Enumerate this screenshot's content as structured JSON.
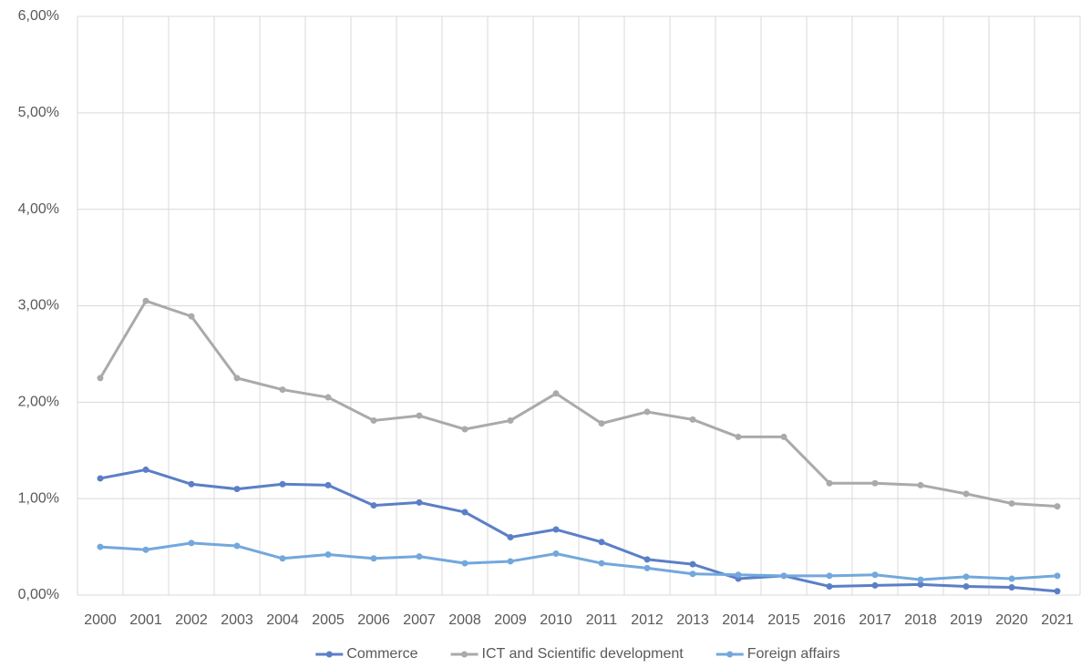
{
  "chart_data": {
    "type": "line",
    "categories": [
      "2000",
      "2001",
      "2002",
      "2003",
      "2004",
      "2005",
      "2006",
      "2007",
      "2008",
      "2009",
      "2010",
      "2011",
      "2012",
      "2013",
      "2014",
      "2015",
      "2016",
      "2017",
      "2018",
      "2019",
      "2020",
      "2021"
    ],
    "series": [
      {
        "name": "Commerce",
        "color": "#5b7fc7",
        "values": [
          1.21,
          1.3,
          1.15,
          1.1,
          1.15,
          1.14,
          0.93,
          0.96,
          0.86,
          0.6,
          0.68,
          0.55,
          0.37,
          0.32,
          0.17,
          0.2,
          0.09,
          0.1,
          0.11,
          0.09,
          0.08,
          0.04
        ]
      },
      {
        "name": "ICT and Scientific development",
        "color": "#aaaaaa",
        "values": [
          2.25,
          3.05,
          2.89,
          2.25,
          2.13,
          2.05,
          1.81,
          1.86,
          1.72,
          1.81,
          2.09,
          1.78,
          1.9,
          1.82,
          1.64,
          1.64,
          1.16,
          1.16,
          1.14,
          1.05,
          0.95,
          0.92
        ]
      },
      {
        "name": "Foreign affairs",
        "color": "#72a8dc",
        "values": [
          0.5,
          0.47,
          0.54,
          0.51,
          0.38,
          0.42,
          0.38,
          0.4,
          0.33,
          0.35,
          0.43,
          0.33,
          0.28,
          0.22,
          0.21,
          0.2,
          0.2,
          0.21,
          0.16,
          0.19,
          0.17,
          0.2
        ]
      }
    ],
    "ylim": [
      0,
      6
    ],
    "yticks": [
      {
        "value": 0,
        "label": "0,00%"
      },
      {
        "value": 1,
        "label": "1,00%"
      },
      {
        "value": 2,
        "label": "2,00%"
      },
      {
        "value": 3,
        "label": "3,00%"
      },
      {
        "value": 4,
        "label": "4,00%"
      },
      {
        "value": 5,
        "label": "5,00%"
      },
      {
        "value": 6,
        "label": "6,00%"
      }
    ],
    "grid": true,
    "legend": "bottom"
  }
}
